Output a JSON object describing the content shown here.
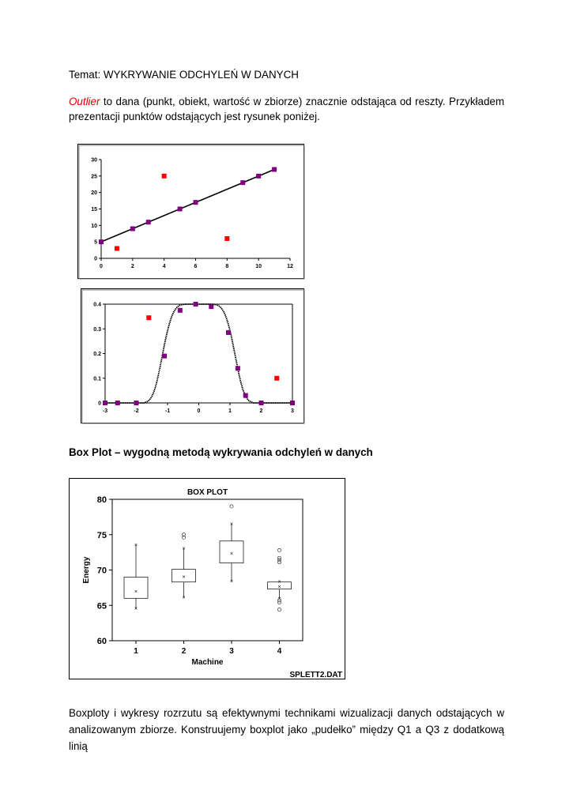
{
  "doc": {
    "topic": "Temat: WYKRYWANIE ODCHYLEŃ W DANYCH",
    "intro_term": "Outlier",
    "intro_rest_line1": "to dana (punkt, obiekt, wartość w zbiorze) znacznie odstająca od reszty.  Przykładem",
    "intro_line2": "prezentacji punktów odstających jest rysunek poniżej.",
    "boxplot_heading": "Box Plot – wygodną metodą wykrywania odchyleń w danych",
    "body_line1": "Boxploty i wykresy rozrzutu są efektywnymi technikami wizualizacji danych odstających w",
    "body_line2": "analizowanym zbiorze.  Konstruujemy boxplot jako „pudełko” między Q1 a Q3 z dodatkową linią"
  },
  "chart_data": [
    {
      "type": "scatter",
      "title": "",
      "xlim": [
        0,
        12
      ],
      "ylim": [
        0,
        30
      ],
      "x_ticks": [
        "0",
        "2",
        "4",
        "6",
        "8",
        "10",
        "12"
      ],
      "y_ticks": [
        "0",
        "5",
        "10",
        "15",
        "20",
        "25",
        "30"
      ],
      "series": [
        {
          "color": "#800080",
          "role": "inliers",
          "x": [
            0,
            2,
            3,
            5,
            6,
            9,
            10,
            11
          ],
          "y": [
            5,
            9,
            11,
            15,
            17,
            23,
            25,
            27
          ]
        },
        {
          "color": "#ff0000",
          "role": "outliers",
          "x": [
            1,
            4,
            8
          ],
          "y": [
            3,
            25,
            6
          ]
        }
      ],
      "fit_line": {
        "x": [
          0,
          11
        ],
        "y": [
          5,
          27
        ],
        "color": "#000000"
      },
      "grid": false
    },
    {
      "type": "scatter",
      "title": "",
      "xlim": [
        -3,
        3
      ],
      "ylim": [
        0,
        0.4
      ],
      "x_ticks": [
        "-3",
        "-2",
        "-1",
        "0",
        "1",
        "2",
        "3"
      ],
      "y_ticks": [
        "0",
        "0.1",
        "0.2",
        "0.3",
        "0.4"
      ],
      "series": [
        {
          "color": "#800080",
          "role": "inliers",
          "x": [
            -3,
            -2.6,
            -2,
            -1.1,
            -0.6,
            -0.1,
            0.4,
            0.95,
            1.25,
            1.5,
            2,
            3
          ],
          "y": [
            0,
            0,
            0,
            0.19,
            0.375,
            0.4,
            0.39,
            0.285,
            0.14,
            0.03,
            0,
            0
          ]
        },
        {
          "color": "#ff0000",
          "role": "outliers",
          "x": [
            -1.6,
            2.5
          ],
          "y": [
            0.345,
            0.1
          ]
        }
      ],
      "fit_curve": {
        "color": "#000000",
        "style": "dotted"
      },
      "grid": false
    },
    {
      "type": "box",
      "title": "BOX PLOT",
      "xlabel": "Machine",
      "ylabel": "Energy",
      "footer": "SPLETT2.DAT",
      "ylim": [
        60,
        80
      ],
      "y_ticks": [
        "60",
        "65",
        "70",
        "75",
        "80"
      ],
      "categories": [
        "1",
        "2",
        "3",
        "4"
      ],
      "boxes": [
        {
          "q1": 66.0,
          "q3": 69.0,
          "mean": 66.9,
          "low": 64.5,
          "high": 73.5,
          "outliers": []
        },
        {
          "q1": 68.3,
          "q3": 70.1,
          "mean": 69.0,
          "low": 66.1,
          "high": 73.0,
          "outliers": [
            74.6,
            75.0
          ]
        },
        {
          "q1": 71.0,
          "q3": 74.1,
          "mean": 72.3,
          "low": 68.4,
          "high": 76.5,
          "outliers": [
            79.0
          ]
        },
        {
          "q1": 67.3,
          "q3": 68.3,
          "mean": 67.6,
          "low": 65.9,
          "high": 68.3,
          "outliers": [
            72.8,
            71.7,
            71.4,
            71.1,
            65.4,
            65.7,
            64.4
          ]
        }
      ]
    }
  ]
}
